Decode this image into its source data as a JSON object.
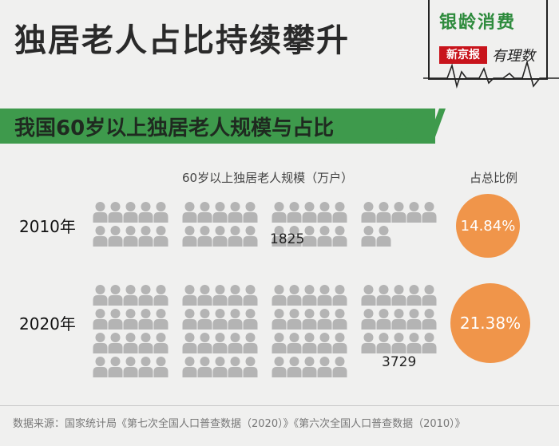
{
  "title": "独居老人占比持续攀升",
  "brand": {
    "name": "银龄消费",
    "publisher": "新京报",
    "column": "有理数"
  },
  "subtitle": "我国60岁以上独居老人规模与占比",
  "chart_data": {
    "type": "pictograph",
    "scale_header": "60岁以上独居老人规模（万户）",
    "share_header": "占总比例",
    "categories": [
      "2010年",
      "2020年"
    ],
    "series": [
      {
        "values": [
          1825,
          3729
        ]
      },
      {
        "values": [
          14.84,
          21.38
        ]
      }
    ],
    "value_labels": [
      "1825",
      "3729"
    ],
    "share_labels": [
      "14.84%",
      "21.38%"
    ],
    "icon_counts": [
      37,
      75
    ]
  },
  "colors": {
    "accent_green": "#3e9a4c",
    "bubble_orange": "#f0954a",
    "icon_gray": "#b4b4b4"
  },
  "icon": "person-icon",
  "source": "数据来源：国家统计局《第七次全国人口普查数据（2020）》《第六次全国人口普查数据（2010）》"
}
